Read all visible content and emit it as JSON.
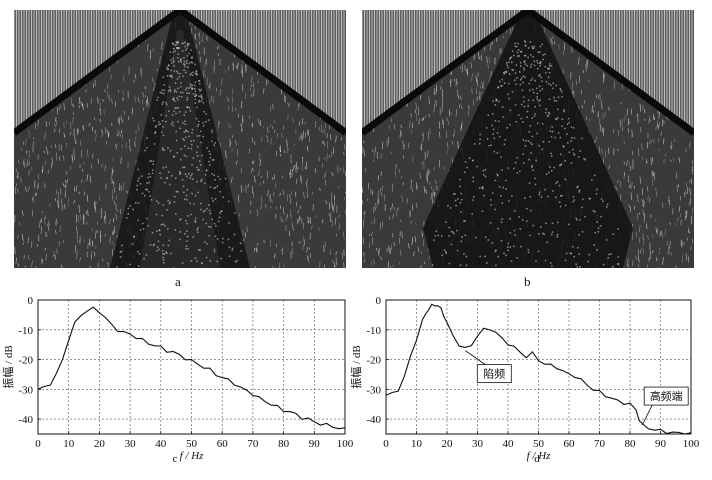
{
  "panels": [
    {
      "label": "a"
    },
    {
      "label": "b"
    }
  ],
  "chart_data": [
    {
      "type": "line",
      "panel_label": "c",
      "xlabel": "f / Hz",
      "ylabel": "振幅 / dB",
      "xlim": [
        0,
        100
      ],
      "ylim": [
        -45,
        0
      ],
      "xticks": [
        0,
        10,
        20,
        30,
        40,
        50,
        60,
        70,
        80,
        90,
        100
      ],
      "yticks": [
        0,
        -10,
        -20,
        -30,
        -40
      ],
      "grid": true,
      "x": [
        0,
        2,
        4,
        6,
        8,
        10,
        12,
        14,
        16,
        18,
        20,
        22,
        24,
        26,
        28,
        30,
        32,
        34,
        36,
        38,
        40,
        42,
        44,
        46,
        48,
        50,
        52,
        54,
        56,
        58,
        60,
        62,
        64,
        66,
        68,
        70,
        72,
        74,
        76,
        78,
        80,
        82,
        84,
        86,
        88,
        90,
        92,
        94,
        96,
        98,
        100
      ],
      "y": [
        -30,
        -29.5,
        -28,
        -25,
        -20,
        -13,
        -8,
        -5,
        -3.5,
        -3,
        -3.8,
        -6,
        -8.5,
        -10,
        -11,
        -11.5,
        -12.5,
        -13.5,
        -14.5,
        -15.2,
        -16,
        -17,
        -17.5,
        -18.5,
        -19.5,
        -20.5,
        -21.5,
        -22.5,
        -23.5,
        -25,
        -26,
        -27,
        -28,
        -29.5,
        -30.5,
        -31.5,
        -33,
        -34,
        -35,
        -36,
        -37,
        -37.5,
        -38.5,
        -39.5,
        -40,
        -41,
        -41.5,
        -42,
        -42.5,
        -43,
        -43.5
      ],
      "annotations": []
    },
    {
      "type": "line",
      "panel_label": "d",
      "xlabel": "f / Hz",
      "ylabel": "振幅 / dB",
      "xlim": [
        0,
        100
      ],
      "ylim": [
        -45,
        0
      ],
      "xticks": [
        0,
        10,
        20,
        30,
        40,
        50,
        60,
        70,
        80,
        90,
        100
      ],
      "yticks": [
        0,
        -10,
        -20,
        -30,
        -40
      ],
      "grid": true,
      "x": [
        0,
        2,
        4,
        6,
        8,
        10,
        12,
        13,
        14,
        15,
        16,
        17,
        18,
        19,
        20,
        22,
        24,
        26,
        28,
        30,
        32,
        34,
        36,
        38,
        40,
        42,
        44,
        46,
        48,
        50,
        52,
        54,
        56,
        58,
        60,
        62,
        64,
        66,
        68,
        70,
        72,
        74,
        76,
        78,
        80,
        82,
        83,
        84,
        86,
        88,
        90,
        92,
        94,
        96,
        98,
        100
      ],
      "y": [
        -32,
        -31.5,
        -30,
        -26,
        -19,
        -13,
        -7,
        -4.5,
        -3,
        -2,
        -1.5,
        -2,
        -3,
        -5,
        -8,
        -12,
        -15,
        -16.5,
        -15,
        -12,
        -10,
        -9.5,
        -11,
        -13,
        -14.5,
        -16,
        -17.5,
        -19,
        -18,
        -20,
        -21.5,
        -22,
        -22.5,
        -24,
        -25,
        -25.5,
        -27,
        -28.5,
        -30,
        -31,
        -32,
        -33,
        -34,
        -34.5,
        -35,
        -37,
        -40,
        -42,
        -43,
        -43.5,
        -44,
        -44.3,
        -44.5,
        -44.8,
        -45,
        -45
      ],
      "annotations": [
        {
          "text": "陷频",
          "x": 26,
          "y": -17
        },
        {
          "text": "高频端",
          "x": 84,
          "y": -42
        }
      ]
    }
  ]
}
